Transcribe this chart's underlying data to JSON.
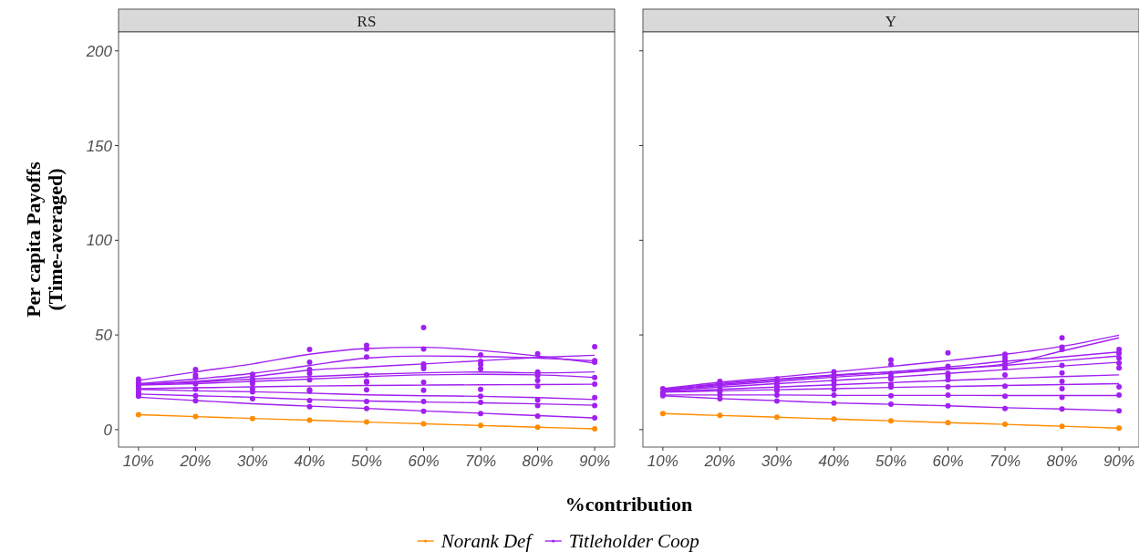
{
  "chart_data": [
    {
      "type": "line",
      "title": "RS",
      "xlabel": "%contribution",
      "ylabel": "Per capita Payoffs\n(Time-averaged)",
      "categories": [
        "10%",
        "20%",
        "30%",
        "40%",
        "50%",
        "60%",
        "70%",
        "80%",
        "90%"
      ],
      "ylim": [
        -9.2,
        210
      ],
      "yticks": [
        0,
        50,
        100,
        150,
        200
      ],
      "grid": false,
      "legend": "bottom",
      "series": [
        {
          "name": "Norank Def",
          "color": "#ff8c00",
          "marker": "circle",
          "values": [
            7.9,
            6.9,
            5.9,
            5.0,
            4.0,
            3.1,
            2.2,
            1.3,
            0.4
          ]
        },
        {
          "name": "Titleholder Coop",
          "color": "#a020f0",
          "values": [
            26.0,
            30.5,
            34.7,
            39.8,
            42.8,
            43.5,
            41.8,
            38.9,
            35.1
          ]
        },
        {
          "color": "#a020f0",
          "values": [
            24.3,
            26.7,
            29.7,
            33.9,
            37.8,
            38.9,
            38.6,
            37.8,
            36.4
          ]
        },
        {
          "color": "#a020f0",
          "values": [
            23.8,
            25.5,
            28.0,
            31.4,
            33.1,
            34.7,
            36.4,
            38.1,
            39.3
          ]
        },
        {
          "color": "#a020f0",
          "values": [
            23.8,
            25.0,
            26.7,
            28.0,
            29.2,
            30.0,
            30.4,
            30.0,
            30.5
          ]
        },
        {
          "color": "#a020f0",
          "values": [
            23.5,
            24.3,
            25.5,
            26.7,
            28.0,
            28.9,
            29.2,
            28.9,
            27.5
          ]
        },
        {
          "color": "#a020f0",
          "values": [
            21.6,
            22.1,
            22.6,
            23.0,
            23.3,
            23.5,
            23.7,
            23.8,
            24.0
          ]
        },
        {
          "color": "#a020f0",
          "values": [
            21.3,
            20.5,
            20.0,
            19.3,
            18.4,
            17.9,
            17.6,
            16.9,
            15.9
          ]
        },
        {
          "color": "#a020f0",
          "values": [
            18.8,
            17.9,
            17.1,
            15.9,
            15.1,
            14.6,
            14.2,
            13.6,
            12.9
          ]
        },
        {
          "color": "#a020f0",
          "values": [
            17.1,
            15.4,
            13.7,
            12.4,
            11.2,
            9.9,
            8.7,
            7.4,
            6.2
          ]
        },
        {
          "type": "scatter",
          "color": "#a020f0",
          "x": [
            "10%",
            "10%",
            "10%",
            "10%",
            "10%",
            "10%",
            "10%",
            "10%",
            "20%",
            "20%",
            "20%",
            "20%",
            "20%",
            "20%",
            "20%",
            "30%",
            "30%",
            "30%",
            "30%",
            "30%",
            "30%",
            "30%",
            "40%",
            "40%",
            "40%",
            "40%",
            "40%",
            "40%",
            "40%",
            "40%",
            "40%",
            "50%",
            "50%",
            "50%",
            "50%",
            "50%",
            "50%",
            "50%",
            "50%",
            "50%",
            "60%",
            "60%",
            "60%",
            "60%",
            "60%",
            "60%",
            "60%",
            "60%",
            "60%",
            "70%",
            "70%",
            "70%",
            "70%",
            "70%",
            "70%",
            "70%",
            "70%",
            "80%",
            "80%",
            "80%",
            "80%",
            "80%",
            "80%",
            "80%",
            "80%",
            "80%",
            "90%",
            "90%",
            "90%",
            "90%",
            "90%",
            "90%",
            "90%",
            "90%"
          ],
          "values": [
            26.7,
            25.0,
            24.2,
            23.0,
            21.6,
            20.0,
            18.8,
            17.6,
            31.7,
            28.9,
            27.5,
            24.2,
            21.3,
            17.9,
            15.3,
            29.2,
            26.7,
            25.5,
            24.3,
            21.6,
            20.0,
            16.3,
            42.3,
            35.6,
            31.7,
            29.7,
            26.3,
            21.0,
            20.3,
            15.4,
            12.1,
            44.5,
            42.6,
            38.4,
            28.9,
            25.5,
            25.0,
            21.0,
            14.9,
            11.1,
            53.9,
            42.6,
            34.7,
            33.4,
            32.2,
            25.0,
            20.8,
            14.9,
            9.7,
            39.4,
            36.1,
            34.4,
            32.1,
            21.3,
            17.6,
            14.4,
            8.5,
            40.0,
            30.4,
            29.7,
            28.5,
            26.0,
            23.0,
            15.6,
            12.7,
            7.2,
            43.8,
            36.4,
            35.6,
            27.5,
            24.0,
            16.9,
            12.7,
            6.2
          ]
        }
      ]
    },
    {
      "type": "line",
      "title": "Y",
      "categories": [
        "10%",
        "20%",
        "30%",
        "40%",
        "50%",
        "60%",
        "70%",
        "80%",
        "90%"
      ],
      "ylim": [
        -9.2,
        210
      ],
      "yticks": [
        0,
        50,
        100,
        150,
        200
      ],
      "grid": false,
      "tick_labels": "x",
      "series": [
        {
          "color": "#ff8c00",
          "marker": "circle",
          "values": [
            8.5,
            7.5,
            6.6,
            5.6,
            4.7,
            3.7,
            2.8,
            1.8,
            0.8
          ]
        },
        {
          "color": "#a020f0",
          "values": [
            21.6,
            25.0,
            27.7,
            30.5,
            33.4,
            36.4,
            39.8,
            44.0,
            49.9
          ]
        },
        {
          "color": "#a020f0",
          "values": [
            21.3,
            24.3,
            26.7,
            28.9,
            30.5,
            32.2,
            34.7,
            41.5,
            48.5
          ]
        },
        {
          "color": "#a020f0",
          "values": [
            21.0,
            23.8,
            26.3,
            28.5,
            30.5,
            33.1,
            36.1,
            38.4,
            41.0
          ]
        },
        {
          "color": "#a020f0",
          "values": [
            20.6,
            23.3,
            25.5,
            27.7,
            29.7,
            31.9,
            33.9,
            36.4,
            38.9
          ]
        },
        {
          "color": "#a020f0",
          "values": [
            20.5,
            22.5,
            24.3,
            26.0,
            27.7,
            29.7,
            31.7,
            33.6,
            35.6
          ]
        },
        {
          "color": "#a020f0",
          "values": [
            20.1,
            21.3,
            22.5,
            23.7,
            24.8,
            26.0,
            27.0,
            28.0,
            28.9
          ]
        },
        {
          "color": "#a020f0",
          "values": [
            19.8,
            20.5,
            21.1,
            21.6,
            22.3,
            22.8,
            23.3,
            23.8,
            24.3
          ]
        },
        {
          "color": "#a020f0",
          "values": [
            18.3,
            18.3,
            18.3,
            18.1,
            18.1,
            18.1,
            18.0,
            18.0,
            18.0
          ]
        },
        {
          "color": "#a020f0",
          "values": [
            17.9,
            16.4,
            15.3,
            14.1,
            13.4,
            12.6,
            11.6,
            10.9,
            10.0
          ]
        },
        {
          "type": "scatter",
          "color": "#a020f0",
          "x": [
            "10%",
            "10%",
            "10%",
            "10%",
            "20%",
            "20%",
            "20%",
            "20%",
            "20%",
            "20%",
            "30%",
            "30%",
            "30%",
            "30%",
            "30%",
            "30%",
            "30%",
            "40%",
            "40%",
            "40%",
            "40%",
            "40%",
            "40%",
            "40%",
            "40%",
            "50%",
            "50%",
            "50%",
            "50%",
            "50%",
            "50%",
            "50%",
            "50%",
            "50%",
            "60%",
            "60%",
            "60%",
            "60%",
            "60%",
            "60%",
            "60%",
            "60%",
            "70%",
            "70%",
            "70%",
            "70%",
            "70%",
            "70%",
            "70%",
            "70%",
            "70%",
            "80%",
            "80%",
            "80%",
            "80%",
            "80%",
            "80%",
            "80%",
            "80%",
            "80%",
            "90%",
            "90%",
            "90%",
            "90%",
            "90%",
            "90%",
            "90%",
            "90%"
          ],
          "values": [
            21.6,
            19.6,
            18.8,
            17.9,
            25.5,
            23.0,
            21.3,
            20.0,
            18.3,
            16.3,
            26.8,
            25.0,
            23.5,
            22.1,
            20.5,
            18.3,
            15.1,
            30.5,
            28.9,
            27.2,
            25.5,
            23.8,
            21.3,
            18.3,
            14.1,
            36.8,
            34.4,
            29.7,
            28.0,
            26.7,
            23.8,
            22.5,
            17.9,
            13.4,
            40.6,
            33.4,
            29.7,
            28.4,
            26.3,
            22.6,
            18.3,
            12.6,
            39.8,
            38.1,
            36.4,
            34.7,
            32.6,
            28.9,
            23.0,
            17.6,
            11.2,
            48.5,
            43.5,
            42.3,
            33.9,
            30.0,
            25.5,
            21.6,
            17.1,
            10.9,
            42.3,
            40.3,
            37.8,
            35.1,
            32.6,
            22.6,
            18.3,
            10.0
          ]
        }
      ]
    }
  ]
}
